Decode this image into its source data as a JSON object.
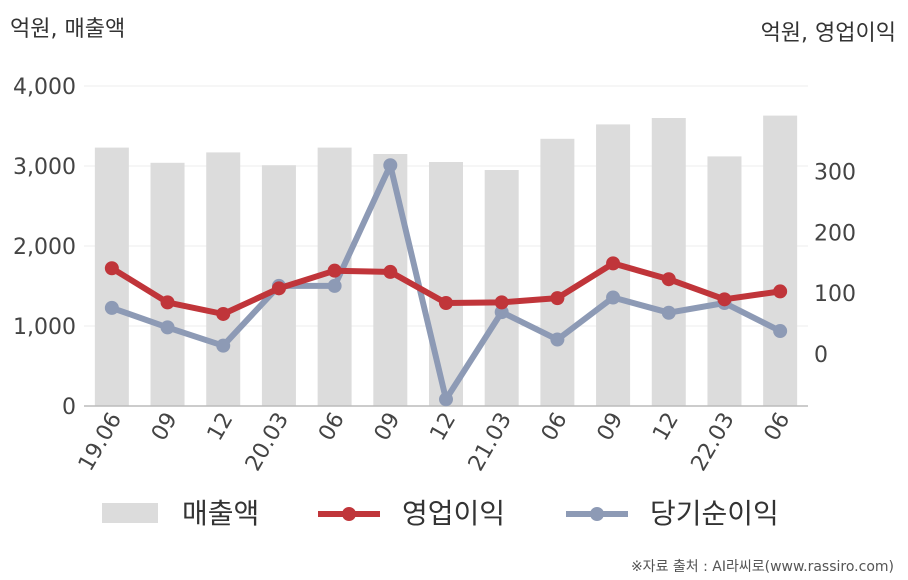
{
  "chart_data": {
    "type": "bar",
    "title": "",
    "left_unit": "억원, 매출액",
    "right_unit": "억원, 영업이익",
    "categories": [
      "19.06",
      "09",
      "12",
      "20.03",
      "06",
      "09",
      "12",
      "21.03",
      "06",
      "09",
      "12",
      "22.03",
      "06"
    ],
    "left_axis": {
      "ylim": [
        0,
        4000
      ],
      "ticks": [
        "0",
        "1,000",
        "2,000",
        "3,000",
        "4,000"
      ]
    },
    "right_axis": {
      "ylim": [
        -85,
        440
      ],
      "ticks": [
        "0",
        "100",
        "200",
        "300"
      ]
    },
    "grid": true,
    "legend_position": "bottom",
    "series": [
      {
        "name": "매출액",
        "type": "bar",
        "axis": "left",
        "color": "#dcdcdc",
        "values": [
          3230,
          3040,
          3170,
          3010,
          3230,
          3150,
          3050,
          2950,
          3340,
          3520,
          3600,
          3120,
          3630
        ]
      },
      {
        "name": "영업이익",
        "type": "line",
        "axis": "right",
        "color": "#c0353a",
        "values": [
          141,
          85,
          66,
          108,
          137,
          135,
          84,
          85,
          92,
          149,
          123,
          90,
          103
        ]
      },
      {
        "name": "당기순이익",
        "type": "line",
        "axis": "right",
        "color": "#8d9ab5",
        "values": [
          76,
          44,
          14,
          112,
          112,
          310,
          -74,
          69,
          24,
          93,
          68,
          84,
          38
        ]
      }
    ],
    "source": "※자료 출처 : AI라씨로(www.rassiro.com)"
  }
}
